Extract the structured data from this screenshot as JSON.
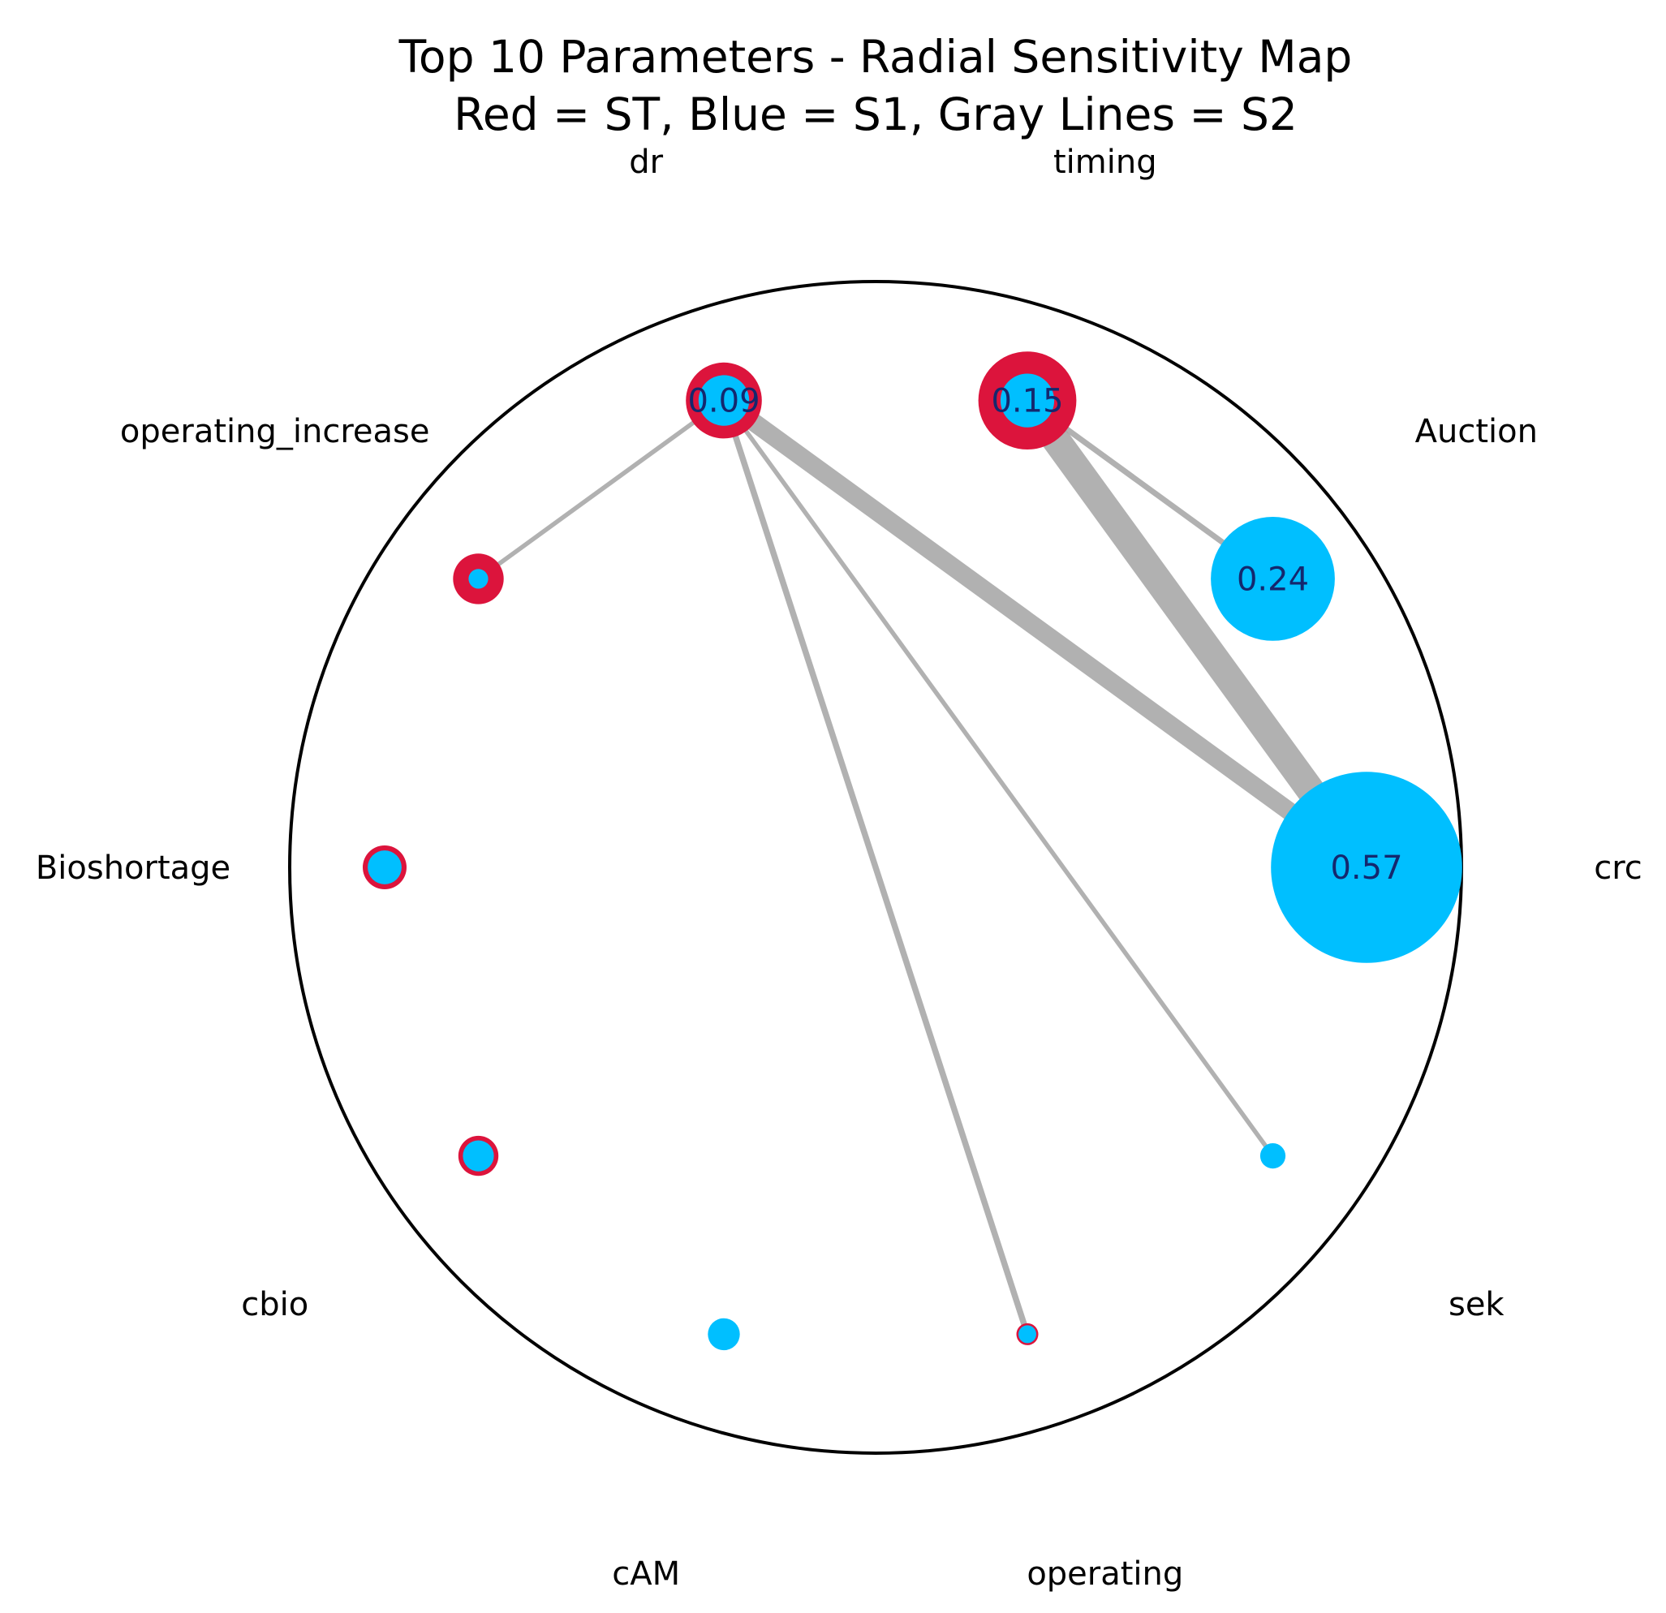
{
  "chart_data": {
    "type": "radial-network",
    "title": "Top 10 Parameters - Radial Sensitivity Map",
    "subtitle": "Red = ST, Blue = S1, Gray Lines = S2",
    "colors": {
      "ST": "#dc143c",
      "S1": "#00bfff",
      "S2": "#a9a9a9",
      "circle": "#000000",
      "value_text": "#14286e"
    },
    "parameters": [
      {
        "name": "crc",
        "S1": 0.57,
        "ST": 0.56,
        "value_label": "0.57"
      },
      {
        "name": "Auction",
        "S1": 0.24,
        "ST": 0.23,
        "value_label": "0.24"
      },
      {
        "name": "timing",
        "S1": 0.045,
        "ST": 0.15,
        "value_label": "0.15"
      },
      {
        "name": "dr",
        "S1": 0.04,
        "ST": 0.09,
        "value_label": "0.09"
      },
      {
        "name": "operating_increase",
        "S1": 0.006,
        "ST": 0.04,
        "value_label": ""
      },
      {
        "name": "Bioshortage",
        "S1": 0.018,
        "ST": 0.03,
        "value_label": ""
      },
      {
        "name": "cbio",
        "S1": 0.015,
        "ST": 0.025,
        "value_label": ""
      },
      {
        "name": "cAM",
        "S1": 0.016,
        "ST": 0.012,
        "value_label": ""
      },
      {
        "name": "operating",
        "S1": 0.005,
        "ST": 0.0075,
        "value_label": ""
      },
      {
        "name": "sek",
        "S1": 0.01,
        "ST": 0.008,
        "value_label": ""
      }
    ],
    "interactions": [
      {
        "a": "dr",
        "b": "crc",
        "S2": 0.045
      },
      {
        "a": "timing",
        "b": "crc",
        "S2": 0.07
      },
      {
        "a": "timing",
        "b": "Auction",
        "S2": 0.014
      },
      {
        "a": "dr",
        "b": "operating",
        "S2": 0.015
      },
      {
        "a": "dr",
        "b": "sek",
        "S2": 0.011
      },
      {
        "a": "dr",
        "b": "operating_increase",
        "S2": 0.011
      }
    ]
  }
}
